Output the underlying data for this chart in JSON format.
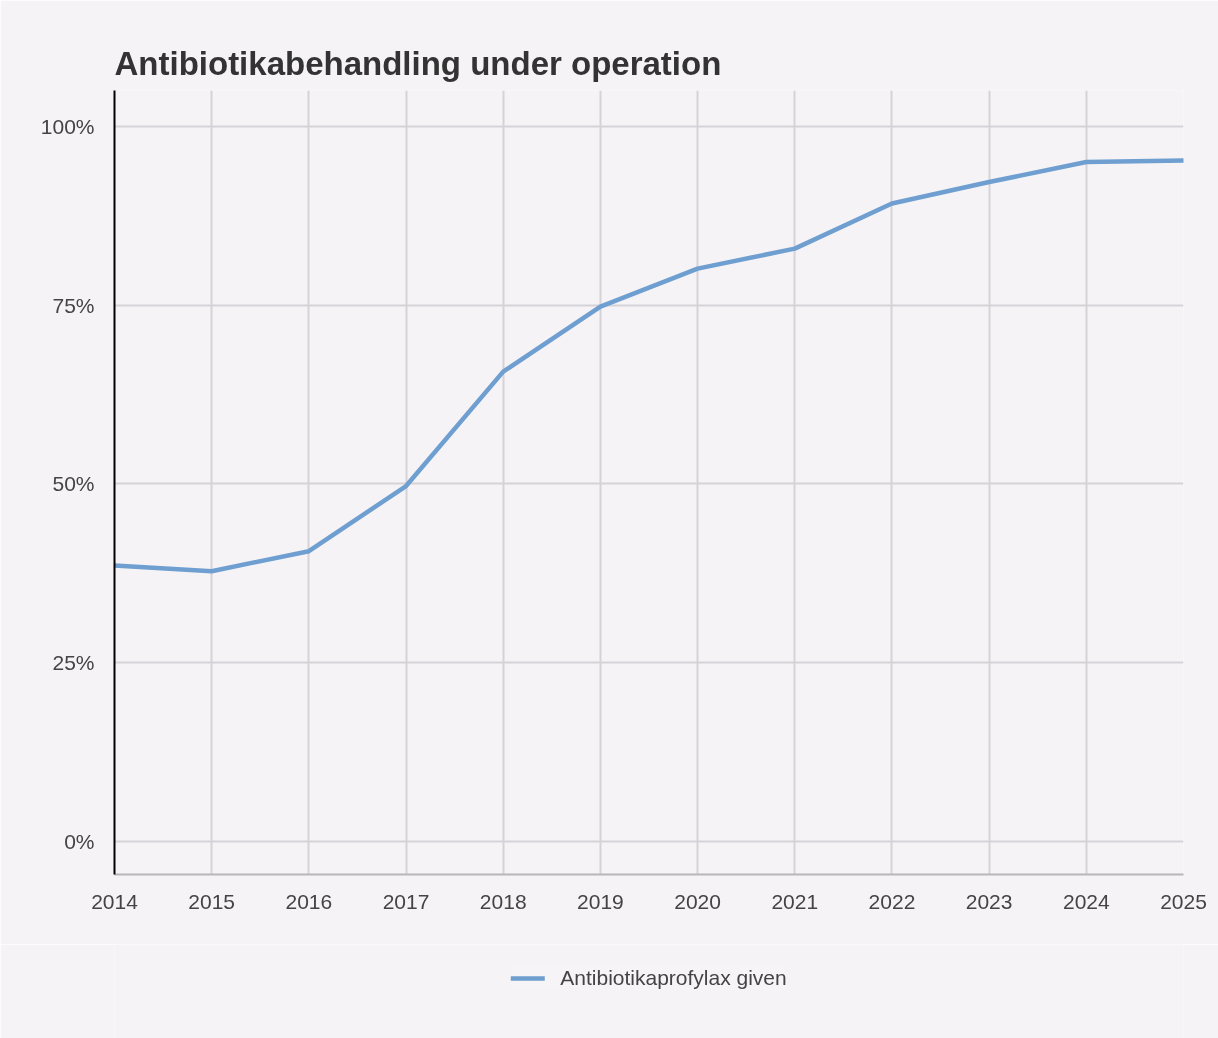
{
  "chart_data": {
    "type": "line",
    "title": "Antibiotikabehandling under operation",
    "x": [
      2014,
      2015,
      2016,
      2017,
      2018,
      2019,
      2020,
      2021,
      2022,
      2023,
      2024,
      2025
    ],
    "series": [
      {
        "name": "Antibiotikaprofylax given",
        "color": "#6e9fd0",
        "values": [
          38.6,
          37.8,
          40.6,
          49.7,
          65.7,
          74.8,
          80.1,
          82.9,
          89.2,
          92.2,
          95.0,
          95.2
        ]
      }
    ],
    "xlim": [
      2014,
      2025
    ],
    "xticks": [
      2014,
      2015,
      2016,
      2017,
      2018,
      2019,
      2020,
      2021,
      2022,
      2023,
      2024,
      2025
    ],
    "ylim": [
      -4.6,
      105
    ],
    "yticks": [
      {
        "value": 0,
        "label": "0%"
      },
      {
        "value": 25,
        "label": "25%"
      },
      {
        "value": 50,
        "label": "50%"
      },
      {
        "value": 75,
        "label": "75%"
      },
      {
        "value": 100,
        "label": "100%"
      }
    ],
    "grid": true,
    "legend": "bottom"
  }
}
